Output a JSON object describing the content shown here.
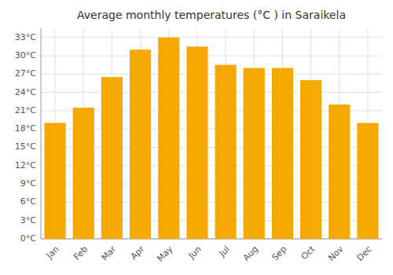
{
  "chart_data": {
    "type": "bar",
    "title": "Average monthly temperatures (°C ) in Saraikela",
    "categories": [
      "Jan",
      "Feb",
      "Mar",
      "Apr",
      "May",
      "Jun",
      "Jul",
      "Aug",
      "Sep",
      "Oct",
      "Nov",
      "Dec"
    ],
    "values": [
      19,
      21.5,
      26.5,
      31,
      33,
      31.5,
      28.5,
      28,
      28,
      26,
      22,
      19
    ],
    "color": "#F5A800",
    "ylim": [
      0,
      34.5
    ],
    "yticks": [
      {
        "value": 0,
        "label": "0°C"
      },
      {
        "value": 3,
        "label": "3°C"
      },
      {
        "value": 6,
        "label": "6°C"
      },
      {
        "value": 9,
        "label": "9°C"
      },
      {
        "value": 12,
        "label": "12°C"
      },
      {
        "value": 15,
        "label": "15°C"
      },
      {
        "value": 18,
        "label": "18°C"
      },
      {
        "value": 21,
        "label": "21°C"
      },
      {
        "value": 24,
        "label": "24°C"
      },
      {
        "value": 27,
        "label": "27°C"
      },
      {
        "value": 30,
        "label": "30°C"
      },
      {
        "value": 33,
        "label": "33°C"
      }
    ],
    "grid": true
  }
}
